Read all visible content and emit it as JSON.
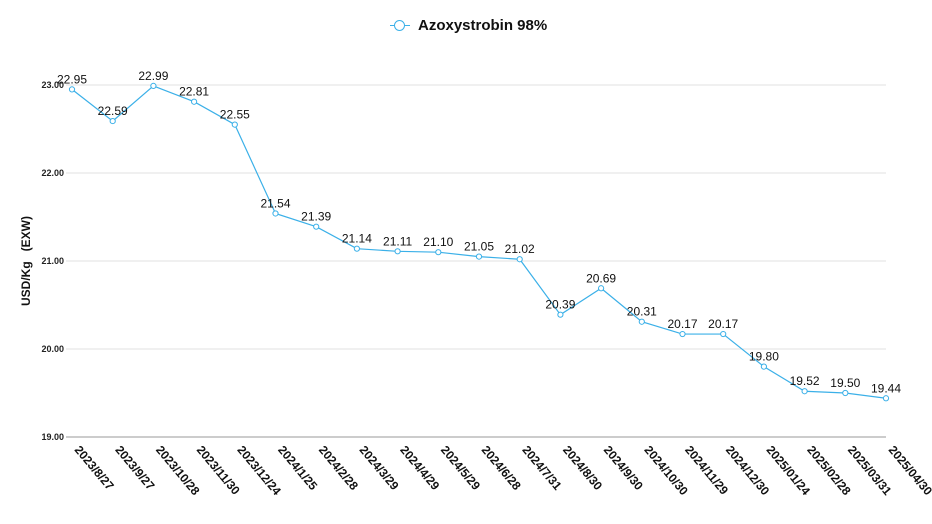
{
  "chart_data": {
    "type": "line",
    "title": "",
    "ylabel": "USD/Kg   (EXW)",
    "xlabel": "",
    "ylim": [
      19.0,
      23.0
    ],
    "yticks": [
      "19.00",
      "20.00",
      "21.00",
      "22.00",
      "23.00"
    ],
    "grid": true,
    "legend_position": "top-center",
    "color": "#3bb0e8",
    "categories": [
      "2023/8/27",
      "2023/9/27",
      "2023/10/28",
      "2023/11/30",
      "2023/12/24",
      "2024/1/25",
      "2024/2/28",
      "2024/3/29",
      "2024/4/29",
      "2024/5/29",
      "2024/6/28",
      "2024/7/31",
      "2024/8/30",
      "2024/9/30",
      "2024/10/30",
      "2024/11/29",
      "2024/12/30",
      "2025/01/24",
      "2025/02/28",
      "2025/03/31",
      "2025/04/30"
    ],
    "series": [
      {
        "name": "Azoxystrobin 98%",
        "values": [
          22.95,
          22.59,
          22.99,
          22.81,
          22.55,
          21.54,
          21.39,
          21.14,
          21.11,
          21.1,
          21.05,
          21.02,
          20.39,
          20.69,
          20.31,
          20.17,
          20.17,
          19.8,
          19.52,
          19.5,
          19.44
        ],
        "labels": [
          "22.95",
          "22.59",
          "22.99",
          "22.81",
          "22.55",
          "21.54",
          "21.39",
          "21.14",
          "21.11",
          "21.10",
          "21.05",
          "21.02",
          "20.39",
          "20.69",
          "20.31",
          "20.17",
          "20.17",
          "19.80",
          "19.52",
          "19.50",
          "19.44"
        ]
      }
    ]
  }
}
